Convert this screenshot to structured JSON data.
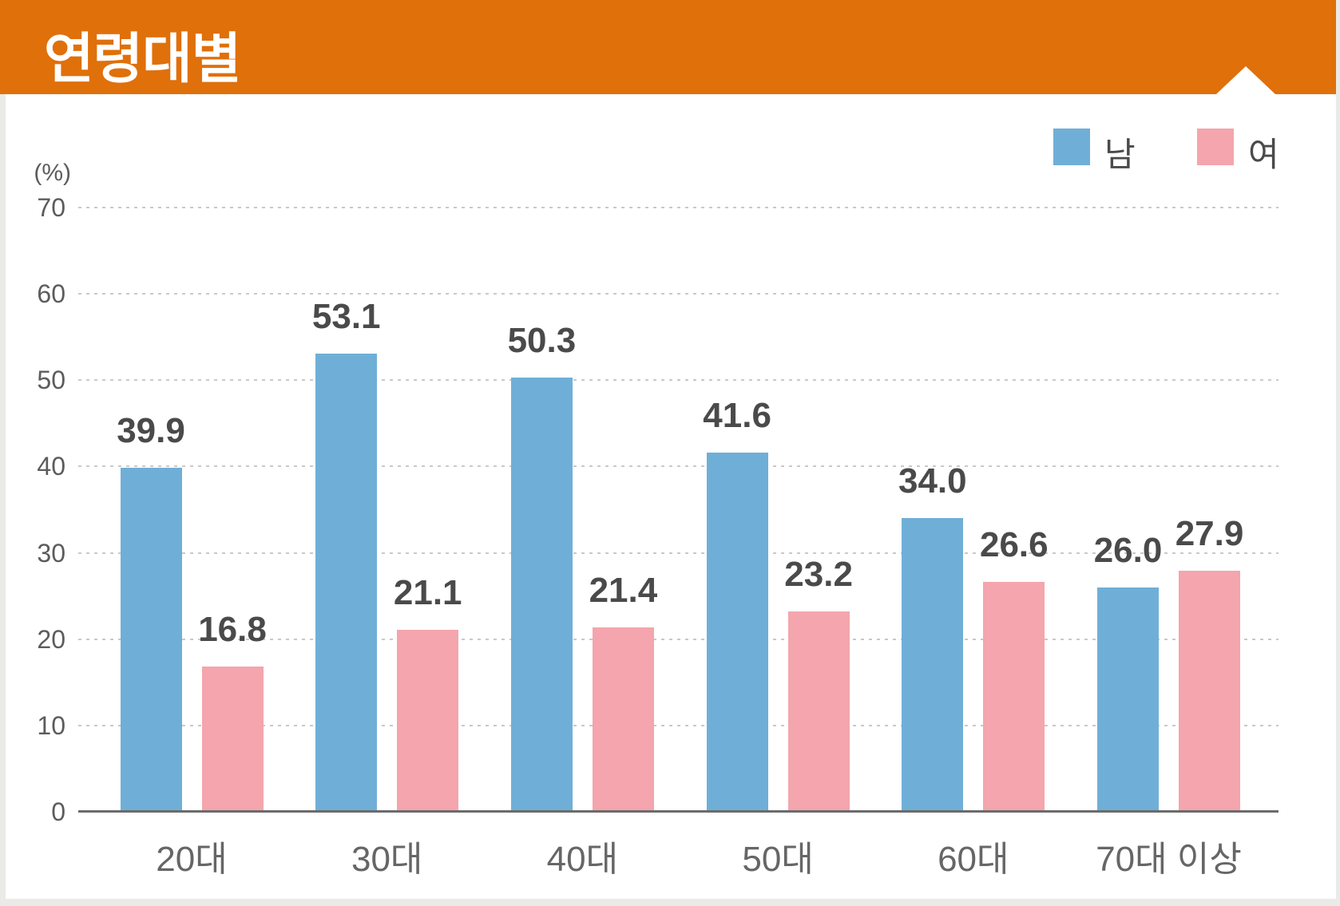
{
  "header": {
    "title": "연령대별"
  },
  "chart_data": {
    "type": "bar",
    "title": "연령대별",
    "unit_label": "(%)",
    "categories": [
      "20대",
      "30대",
      "40대",
      "50대",
      "60대",
      "70대 이상"
    ],
    "series": [
      {
        "name": "남",
        "color": "#6fafd7",
        "values": [
          39.9,
          53.1,
          50.3,
          41.6,
          34.0,
          26.0
        ],
        "labels": [
          "39.9",
          "53.1",
          "50.3",
          "41.6",
          "34.0",
          "26.0"
        ]
      },
      {
        "name": "여",
        "color": "#f4a5ad",
        "values": [
          16.8,
          21.1,
          21.4,
          23.2,
          26.6,
          27.9
        ],
        "labels": [
          "16.8",
          "21.1",
          "21.4",
          "23.2",
          "26.6",
          "27.9"
        ]
      }
    ],
    "ylim": [
      0,
      70
    ],
    "yticks": [
      0,
      10,
      20,
      30,
      40,
      50,
      60,
      70
    ],
    "grid": "horizontal-dotted",
    "legend_position": "top-right",
    "colors": {
      "header_orange": "#e0700a",
      "male_blue": "#6fafd7",
      "female_pink": "#f4a5ad",
      "value_text": "#4a4a4a",
      "axis_text": "#5c5c5c",
      "gridline": "#c9c9c9",
      "page_background": "#eaeae8"
    }
  }
}
